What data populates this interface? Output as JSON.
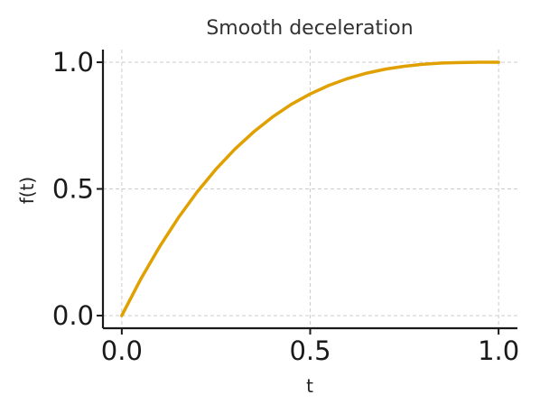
{
  "chart_data": {
    "type": "line",
    "title": "Smooth deceleration",
    "xlabel": "t",
    "ylabel": "f(t)",
    "xlim": [
      -0.05,
      1.05
    ],
    "ylim": [
      -0.05,
      1.05
    ],
    "xticks": [
      0.0,
      0.5,
      1.0
    ],
    "yticks": [
      0.0,
      0.5,
      1.0
    ],
    "xtick_labels": [
      "0.0",
      "0.5",
      "1.0"
    ],
    "ytick_labels": [
      "0.0",
      "0.5",
      "1.0"
    ],
    "grid": true,
    "series": [
      {
        "name": "f(t)",
        "color": "#e0a000",
        "x": [
          0.0,
          0.05,
          0.1,
          0.15,
          0.2,
          0.25,
          0.3,
          0.35,
          0.4,
          0.45,
          0.5,
          0.55,
          0.6,
          0.65,
          0.7,
          0.75,
          0.8,
          0.85,
          0.9,
          0.95,
          1.0
        ],
        "y": [
          0.0,
          0.143,
          0.271,
          0.386,
          0.488,
          0.578,
          0.657,
          0.725,
          0.784,
          0.834,
          0.875,
          0.909,
          0.936,
          0.957,
          0.973,
          0.984,
          0.992,
          0.997,
          0.999,
          1.0,
          1.0
        ]
      }
    ]
  }
}
